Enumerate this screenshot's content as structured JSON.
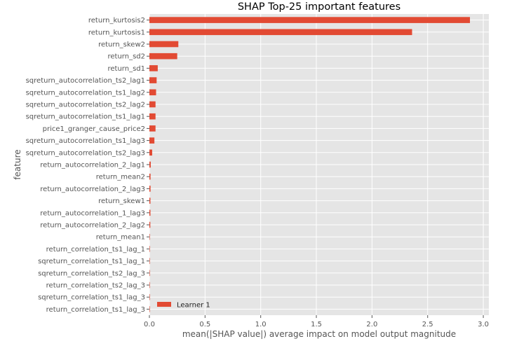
{
  "chart_data": {
    "type": "bar",
    "orientation": "horizontal",
    "title": "SHAP Top-25 important features",
    "xlabel": "mean(|SHAP value|) average impact on model output magnitude",
    "ylabel": "feature",
    "xlim": [
      0,
      3.05
    ],
    "xticks": [
      "0.0",
      "0.5",
      "1.0",
      "1.5",
      "2.0",
      "2.5",
      "3.0"
    ],
    "grid": true,
    "legend_position": "bottom-left",
    "categories": [
      "return_kurtosis2",
      "return_kurtosis1",
      "return_skew2",
      "return_sd2",
      "return_sd1",
      "sqreturn_autocorrelation_ts2_lag1",
      "sqreturn_autocorrelation_ts1_lag2",
      "sqreturn_autocorrelation_ts2_lag2",
      "sqreturn_autocorrelation_ts1_lag1",
      "price1_granger_cause_price2",
      "sqreturn_autocorrelation_ts1_lag3",
      "sqreturn_autocorrelation_ts2_lag3",
      "return_autocorrelation_2_lag1",
      "return_mean2",
      "return_autocorrelation_2_lag3",
      "return_skew1",
      "return_autocorrelation_1_lag3",
      "return_autocorrelation_2_lag2",
      "return_mean1",
      "return_correlation_ts1_lag_1",
      "sqreturn_correlation_ts1_lag_1",
      "sqreturn_correlation_ts2_lag_3",
      "return_correlation_ts2_lag_3",
      "sqreturn_correlation_ts1_lag_3",
      "return_correlation_ts1_lag_3"
    ],
    "series": [
      {
        "name": "Learner 1",
        "color": "#E24A33",
        "values": [
          2.88,
          2.36,
          0.26,
          0.25,
          0.075,
          0.065,
          0.06,
          0.055,
          0.055,
          0.055,
          0.045,
          0.025,
          0.012,
          0.01,
          0.01,
          0.009,
          0.009,
          0.008,
          0.002,
          0.001,
          0.001,
          0.001,
          0.001,
          0.001,
          0.001
        ]
      }
    ]
  }
}
